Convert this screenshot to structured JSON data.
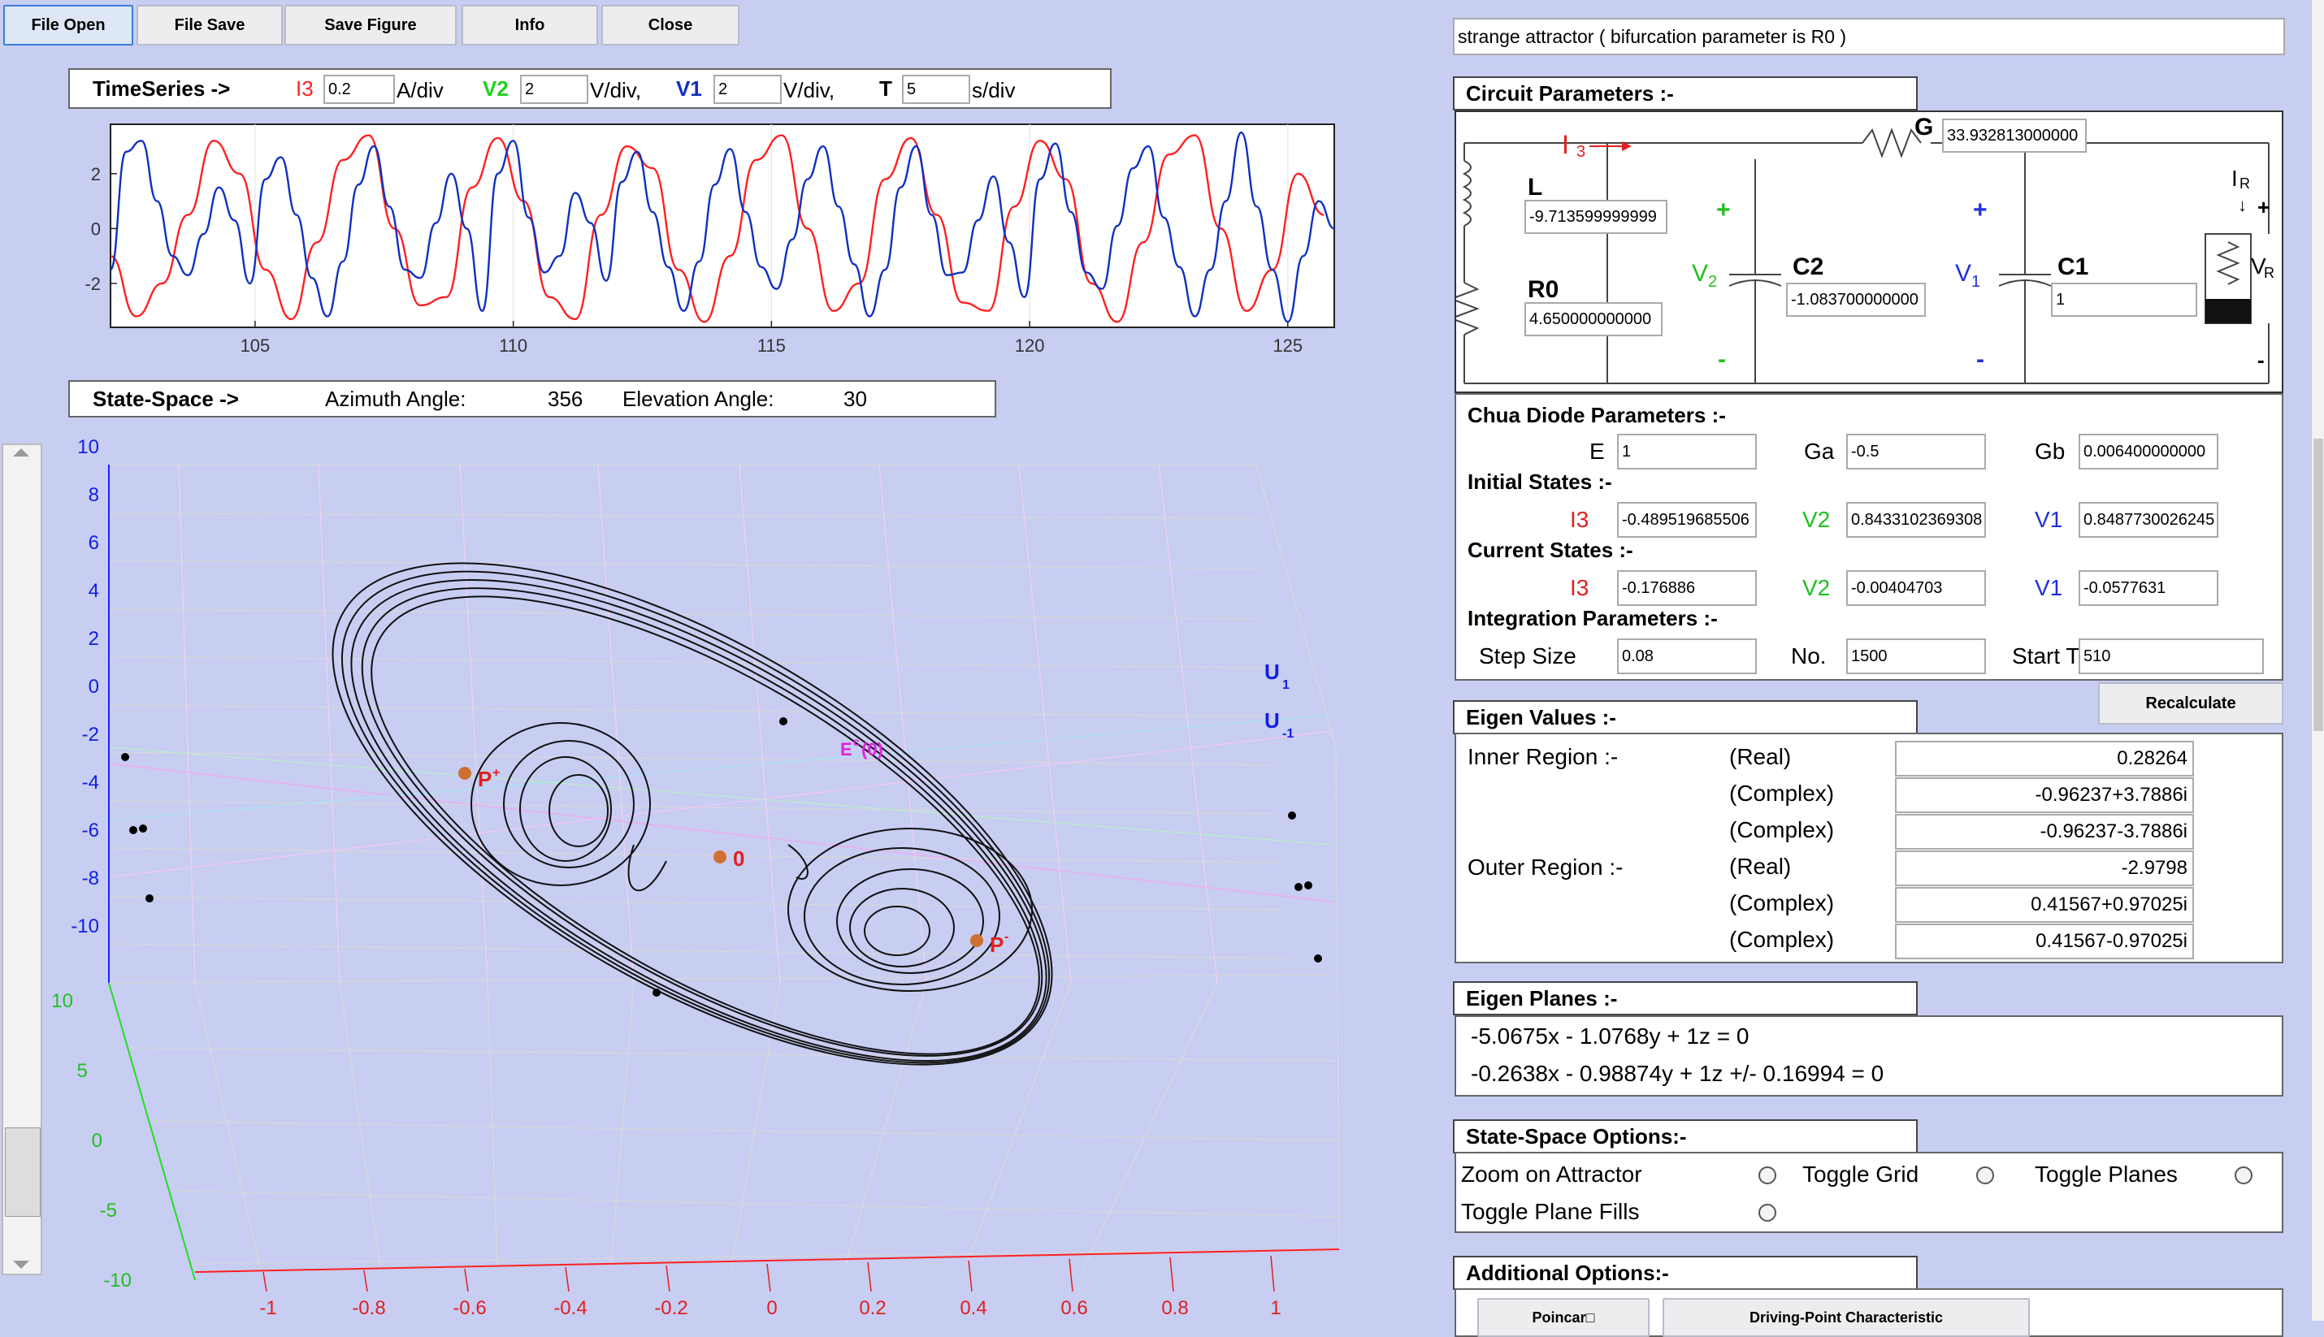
{
  "toolbar": {
    "file_open": "File Open",
    "file_save": "File Save",
    "save_figure": "Save Figure",
    "info": "Info",
    "close": "Close"
  },
  "status_text": "strange attractor ( bifurcation parameter is R0 )",
  "timeseries": {
    "title": "TimeSeries ->",
    "i3_label": "I3",
    "i3_value": "0.2",
    "i3_unit": "A/div",
    "v2_label": "V2",
    "v2_value": "2",
    "v2_unit": "V/div,",
    "v1_label": "V1",
    "v1_value": "2",
    "v1_unit": "V/div,",
    "t_label": "T",
    "t_value": "5",
    "t_unit": "s/div"
  },
  "statespace_header": {
    "title": "State-Space ->",
    "azimuth_label": "Azimuth Angle:",
    "azimuth_value": "356",
    "elevation_label": "Elevation Angle:",
    "elevation_value": "30"
  },
  "circuit": {
    "title": "Circuit Parameters :-",
    "i3": "I",
    "i3_sub": "3",
    "g_label": "G",
    "g_value": "33.932813000000",
    "l_label": "L",
    "l_value": "-9.713599999999",
    "r0_label": "R0",
    "r0_value": "4.650000000000",
    "c2_label": "C2",
    "c2_value": "-1.083700000000",
    "c1_label": "C1",
    "c1_value": "1",
    "v2": "V",
    "v2_sub": "2",
    "v1": "V",
    "v1_sub": "1",
    "ir": "I",
    "ir_sub": "R",
    "vr": "V",
    "vr_sub": "R",
    "plus": "+",
    "minus": "-"
  },
  "diode": {
    "title": "Chua Diode Parameters :-",
    "e_label": "E",
    "e_value": "1",
    "ga_label": "Ga",
    "ga_value": "-0.5",
    "gb_label": "Gb",
    "gb_value": "0.006400000000"
  },
  "initial_states": {
    "title": "Initial States :-",
    "i3_label": "I3",
    "i3_value": "-0.489519685506",
    "v2_label": "V2",
    "v2_value": "0.8433102369308",
    "v1_label": "V1",
    "v1_value": "0.8487730026245"
  },
  "current_states": {
    "title": "Current States :-",
    "i3_label": "I3",
    "i3_value": "-0.176886",
    "v2_label": "V2",
    "v2_value": "-0.00404703",
    "v1_label": "V1",
    "v1_value": "-0.0577631"
  },
  "integration": {
    "title": "Integration Parameters :-",
    "step_label": "Step Size",
    "step_value": "0.08",
    "no_label": "No.",
    "no_value": "1500",
    "start_label": "Start T",
    "start_value": "510"
  },
  "recalculate": "Recalculate",
  "eigen_values": {
    "title": "Eigen Values :-",
    "inner_label": "Inner Region :-",
    "outer_label": "Outer Region :-",
    "rows": [
      {
        "kind": "(Real)",
        "value": "0.28264"
      },
      {
        "kind": "(Complex)",
        "value": "-0.96237+3.7886i"
      },
      {
        "kind": "(Complex)",
        "value": "-0.96237-3.7886i"
      },
      {
        "kind": "(Real)",
        "value": "-2.9798"
      },
      {
        "kind": "(Complex)",
        "value": "0.41567+0.97025i"
      },
      {
        "kind": "(Complex)",
        "value": "0.41567-0.97025i"
      }
    ]
  },
  "eigen_planes": {
    "title": "Eigen Planes :-",
    "eq1": "-5.0675x - 1.0768y + 1z = 0",
    "eq2": "-0.2638x - 0.98874y + 1z +/- 0.16994 = 0"
  },
  "ss_options": {
    "title": "State-Space Options:-",
    "zoom": "Zoom on Attractor",
    "grid": "Toggle Grid",
    "planes": "Toggle Planes",
    "fills": "Toggle Plane Fills"
  },
  "additional": {
    "title": "Additional Options:-",
    "poincare": "Poincar□",
    "driving_point": "Driving-Point Characteristic"
  },
  "chart_data": [
    {
      "type": "line",
      "x_ticks": [
        "105",
        "110",
        "115",
        "120",
        "125"
      ],
      "y_ticks": [
        "2",
        "0",
        "-2"
      ],
      "xlim": [
        102.2,
        125.9
      ],
      "ylim": [
        -3.6,
        3.8
      ],
      "series": [
        {
          "color": "#ff2020",
          "x": [
            102.2,
            102.7,
            103.2,
            103.7,
            104.2,
            104.7,
            105.2,
            105.7,
            106.2,
            106.7,
            107.2,
            107.7,
            108.2,
            108.7,
            109.2,
            109.7,
            110.2,
            110.7,
            111.2,
            111.7,
            112.2,
            112.7,
            113.2,
            113.7,
            114.2,
            114.7,
            115.2,
            115.7,
            116.2,
            116.7,
            117.2,
            117.7,
            118.2,
            118.7,
            119.2,
            119.7,
            120.2,
            120.7,
            121.2,
            121.7,
            122.2,
            122.7,
            123.2,
            123.7,
            124.2,
            124.7,
            125.2,
            125.7
          ],
          "y": [
            -1.0,
            -3.2,
            -2.0,
            0.5,
            3.2,
            2.0,
            -1.5,
            -3.3,
            -0.5,
            2.5,
            3.4,
            0.0,
            -2.8,
            -2.5,
            1.5,
            3.3,
            1.0,
            -2.5,
            -3.3,
            0.5,
            3.0,
            2.2,
            -1.5,
            -3.4,
            -1.0,
            2.5,
            3.4,
            0.0,
            -3.0,
            -2.0,
            1.8,
            3.3,
            0.5,
            -2.7,
            -3.0,
            0.8,
            3.2,
            1.8,
            -2.0,
            -3.4,
            -0.5,
            2.7,
            3.4,
            0.0,
            -3.0,
            -1.5,
            2.0,
            0.5
          ]
        },
        {
          "color": "#1030c0",
          "x": [
            102.2,
            102.5,
            102.8,
            103.1,
            103.4,
            103.7,
            104.0,
            104.3,
            104.6,
            104.9,
            105.2,
            105.5,
            105.8,
            106.1,
            106.4,
            106.7,
            107.0,
            107.3,
            107.6,
            107.9,
            108.2,
            108.5,
            108.8,
            109.1,
            109.4,
            109.7,
            110.0,
            110.3,
            110.6,
            110.9,
            111.2,
            111.5,
            111.8,
            112.1,
            112.4,
            112.7,
            113.0,
            113.3,
            113.6,
            113.9,
            114.2,
            114.5,
            114.8,
            115.1,
            115.4,
            115.7,
            116.0,
            116.3,
            116.6,
            116.9,
            117.2,
            117.5,
            117.8,
            118.1,
            118.4,
            118.7,
            119.0,
            119.3,
            119.6,
            119.9,
            120.2,
            120.5,
            120.8,
            121.1,
            121.4,
            121.7,
            122.0,
            122.3,
            122.6,
            122.9,
            123.2,
            123.5,
            123.8,
            124.1,
            124.4,
            124.7,
            125.0,
            125.3,
            125.6,
            125.9
          ],
          "y": [
            -1.5,
            2.8,
            3.2,
            1.0,
            -1.0,
            -1.7,
            -0.2,
            1.5,
            0.3,
            -2.0,
            1.8,
            2.6,
            0.5,
            -1.8,
            -3.2,
            -1.2,
            1.6,
            3.0,
            0.8,
            -1.5,
            -1.8,
            0.2,
            2.0,
            0.0,
            -3.0,
            2.0,
            3.2,
            0.4,
            -1.6,
            -1.0,
            1.3,
            0.2,
            -1.9,
            1.7,
            2.8,
            0.6,
            -1.4,
            -3.0,
            -1.2,
            1.6,
            2.9,
            0.6,
            -1.4,
            -2.2,
            -0.4,
            1.8,
            3.0,
            0.8,
            -1.3,
            -3.2,
            -1.5,
            1.5,
            3.0,
            0.5,
            -1.7,
            -1.6,
            0.3,
            1.9,
            -0.5,
            -2.5,
            1.8,
            3.1,
            0.6,
            -1.6,
            -2.2,
            0.1,
            2.2,
            3.0,
            0.4,
            -1.4,
            -3.2,
            -1.5,
            1.0,
            3.5,
            0.8,
            -1.5,
            -3.4,
            -1.0,
            1.0,
            0.0
          ]
        }
      ]
    },
    {
      "type": "scatter",
      "z_ticks": [
        "10",
        "8",
        "6",
        "4",
        "2",
        "0",
        "-2",
        "-4",
        "-6",
        "-8",
        "-10"
      ],
      "y_ticks": [
        "10",
        "5",
        "0",
        "-5",
        "-10"
      ],
      "x_ticks": [
        "-1",
        "-0.8",
        "-0.6",
        "-0.4",
        "-0.2",
        "0",
        "0.2",
        "0.4",
        "0.6",
        "0.8",
        "1"
      ],
      "point_labels": {
        "p_plus": "P",
        "p_plus_sup": "+",
        "zero": "0",
        "p_minus": "P",
        "p_minus_sup": "-",
        "e_label": "E",
        "e_sup": "c",
        "e_paren": "(0)",
        "u1": "U",
        "u1_sub": "1",
        "um1": "U",
        "um1_sub": "-1"
      }
    }
  ]
}
